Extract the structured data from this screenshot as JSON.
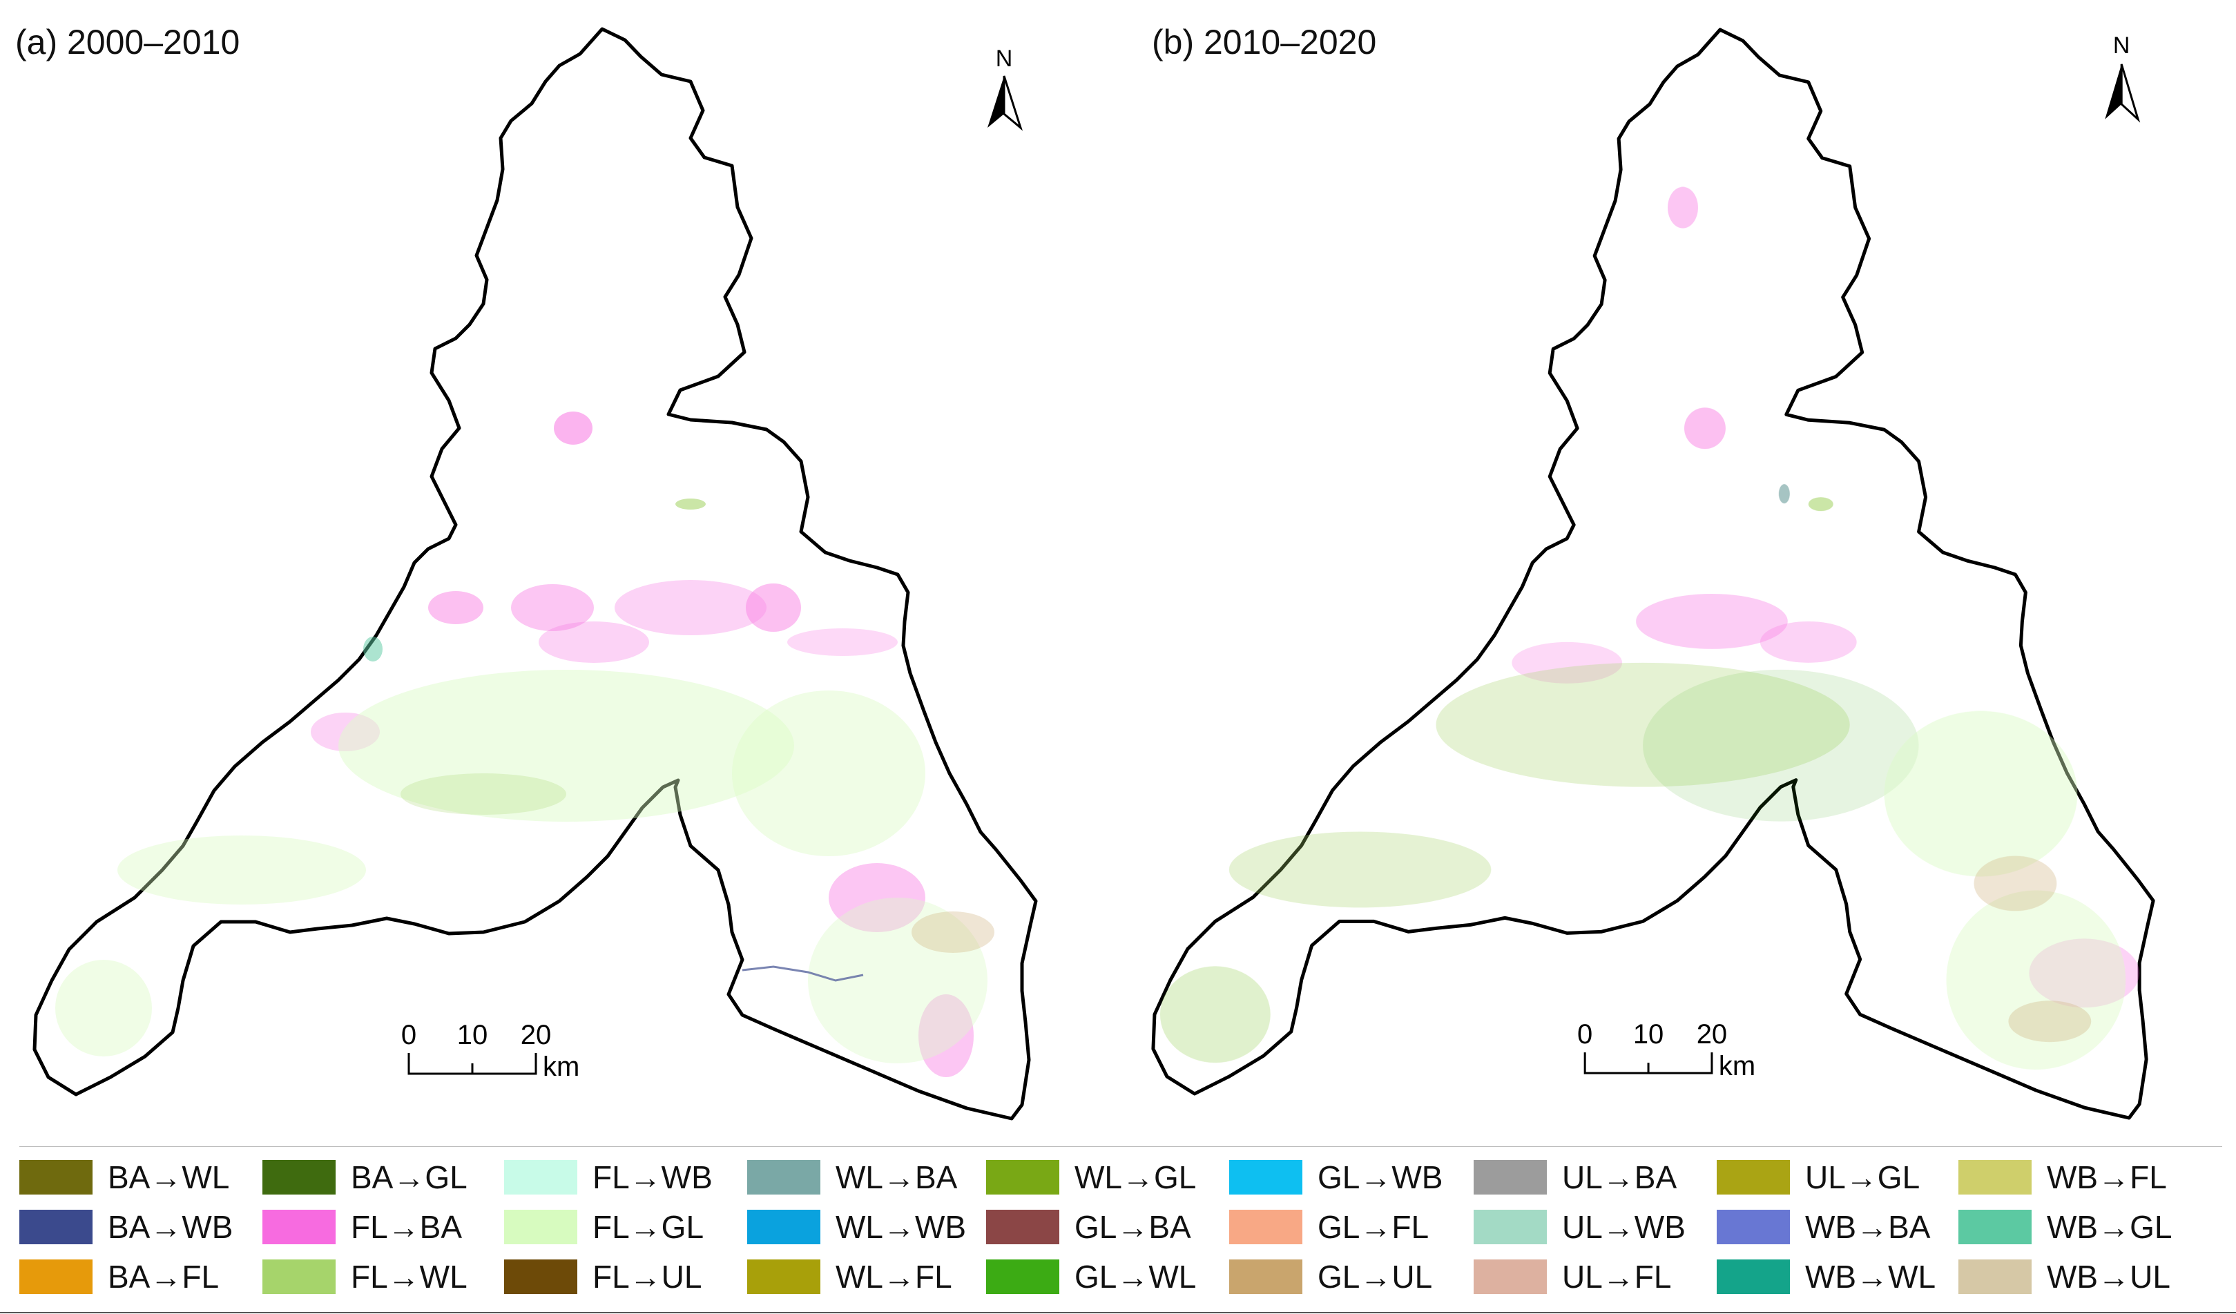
{
  "panels": [
    {
      "title": "(a) 2000–2010",
      "north": "N",
      "scale": {
        "ticks": [
          "0",
          "10",
          "20"
        ],
        "unit": "km"
      }
    },
    {
      "title": "(b) 2010–2020",
      "north": "N",
      "scale": {
        "ticks": [
          "0",
          "10",
          "20"
        ],
        "unit": "km"
      }
    }
  ],
  "legend": [
    [
      {
        "label": "BA→WL",
        "color": "#6f6a0e"
      },
      {
        "label": "BA→WB",
        "color": "#3b4a8d"
      },
      {
        "label": "BA→FL",
        "color": "#e69a0b"
      }
    ],
    [
      {
        "label": "BA→GL",
        "color": "#3f6b0f"
      },
      {
        "label": "FL→BA",
        "color": "#f76be0"
      },
      {
        "label": "FL→WL",
        "color": "#a6d46b"
      }
    ],
    [
      {
        "label": "FL→WB",
        "color": "#c8fbe8"
      },
      {
        "label": "FL→GL",
        "color": "#d7fbbf"
      },
      {
        "label": "FL→UL",
        "color": "#6d4a08"
      }
    ],
    [
      {
        "label": "WL→BA",
        "color": "#7aa8a6"
      },
      {
        "label": "WL→WB",
        "color": "#0aa2de"
      },
      {
        "label": "WL→FL",
        "color": "#a8a00a"
      }
    ],
    [
      {
        "label": "WL→GL",
        "color": "#79a815"
      },
      {
        "label": "GL→BA",
        "color": "#8b4646"
      },
      {
        "label": "GL→WL",
        "color": "#3cab14"
      }
    ],
    [
      {
        "label": "GL→WB",
        "color": "#0ebff1"
      },
      {
        "label": "GL→FL",
        "color": "#f8a885"
      },
      {
        "label": "GL→UL",
        "color": "#c9a56d"
      }
    ],
    [
      {
        "label": "UL→BA",
        "color": "#9c9c9c"
      },
      {
        "label": "UL→WB",
        "color": "#a3dac5"
      },
      {
        "label": "UL→FL",
        "color": "#ddb1a0"
      }
    ],
    [
      {
        "label": "UL→GL",
        "color": "#aaa414"
      },
      {
        "label": "WB→BA",
        "color": "#6877d3"
      },
      {
        "label": "WB→WL",
        "color": "#14a48a"
      }
    ],
    [
      {
        "label": "WB→FL",
        "color": "#cfcf6b"
      },
      {
        "label": "WB→GL",
        "color": "#5cc9a2"
      },
      {
        "label": "WB→UL",
        "color": "#d6c8a6"
      }
    ]
  ]
}
